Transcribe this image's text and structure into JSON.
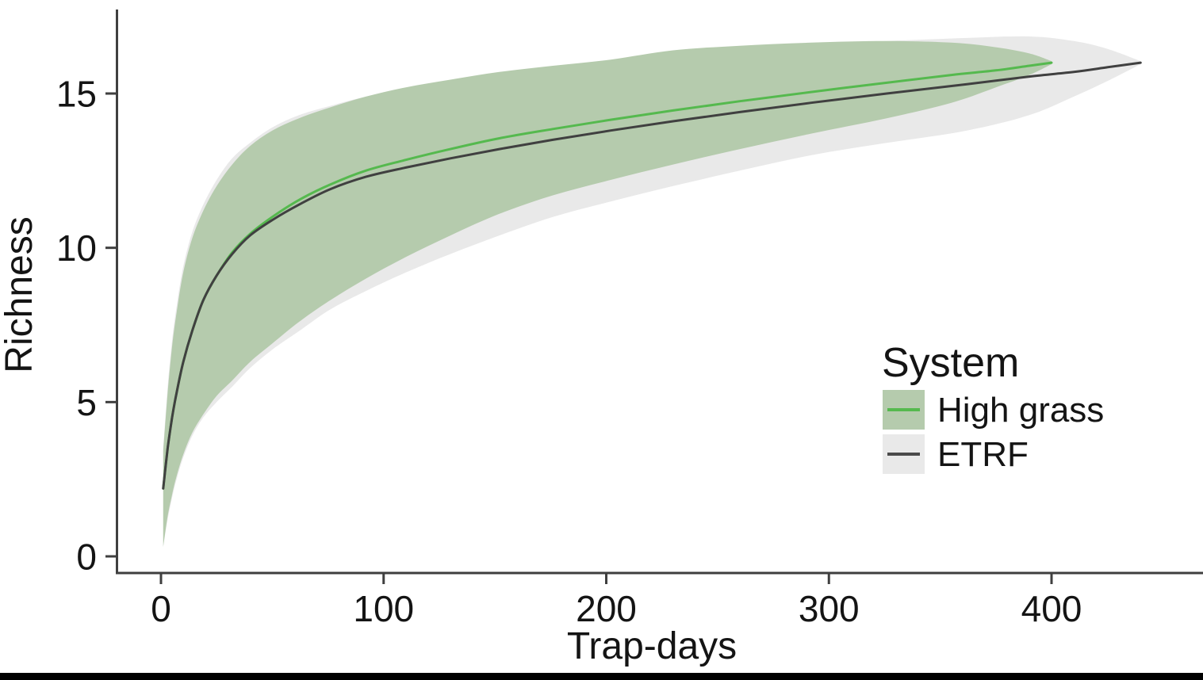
{
  "figure": {
    "background": "#ffffff",
    "bottom_bar_color": "#000000",
    "axis_line_color": "#3f3f3f",
    "tick_label_color": "#141414"
  },
  "chart_data": {
    "type": "line",
    "title": "",
    "xlabel": "Trap-days",
    "ylabel": "Richness",
    "xlim": [
      0,
      460
    ],
    "ylim": [
      0,
      17.5
    ],
    "x_ticks": [
      0,
      100,
      200,
      300,
      400
    ],
    "y_ticks": [
      0,
      5,
      10,
      15
    ],
    "grid": "off",
    "legend": {
      "title": "System",
      "position": "right-middle",
      "entries": [
        {
          "label": "High grass",
          "line_color": "#55b94e",
          "ribbon_color": "#b5cbad"
        },
        {
          "label": "ETRF",
          "line_color": "#4a4a4a",
          "ribbon_color": "#e9e9e9"
        }
      ]
    },
    "series": [
      {
        "key": "etrf",
        "name": "ETRF",
        "style": "line-with-ribbon",
        "line_color": "#404040",
        "ribbon_color": "#e9e9e9",
        "x": [
          1,
          3,
          5,
          7,
          10,
          14,
          19,
          25,
          32,
          40,
          50,
          62,
          76,
          92,
          110,
          130,
          152,
          176,
          202,
          230,
          260,
          292,
          326,
          362,
          390,
          410,
          425,
          440
        ],
        "y": [
          2.2,
          3.5,
          4.5,
          5.3,
          6.3,
          7.3,
          8.3,
          9.1,
          9.8,
          10.4,
          10.9,
          11.4,
          11.9,
          12.3,
          12.6,
          12.9,
          13.2,
          13.5,
          13.8,
          14.1,
          14.4,
          14.7,
          15.0,
          15.3,
          15.55,
          15.7,
          15.85,
          16.0
        ],
        "upper": [
          3.5,
          5.5,
          7.0,
          8.1,
          9.4,
          10.5,
          11.4,
          12.2,
          12.9,
          13.4,
          13.9,
          14.3,
          14.6,
          14.9,
          15.15,
          15.4,
          15.6,
          15.8,
          15.95,
          16.2,
          16.45,
          16.6,
          16.7,
          16.8,
          16.85,
          16.7,
          16.45,
          16.05
        ],
        "lower": [
          0.3,
          1.2,
          1.9,
          2.5,
          3.2,
          3.9,
          4.5,
          5.0,
          5.5,
          6.1,
          6.7,
          7.3,
          8.0,
          8.6,
          9.2,
          9.8,
          10.4,
          11.0,
          11.5,
          12.0,
          12.5,
          13.0,
          13.4,
          13.8,
          14.3,
          14.9,
          15.4,
          15.95
        ]
      },
      {
        "key": "high_grass",
        "name": "High grass",
        "style": "line-with-ribbon",
        "line_color": "#55b94e",
        "ribbon_color": "#b5cbad",
        "x": [
          1,
          3,
          5,
          7,
          10,
          14,
          19,
          25,
          32,
          40,
          50,
          62,
          76,
          92,
          110,
          130,
          152,
          176,
          202,
          230,
          260,
          292,
          326,
          355,
          375,
          390,
          400
        ],
        "y": [
          2.2,
          3.5,
          4.5,
          5.3,
          6.3,
          7.3,
          8.3,
          9.1,
          9.85,
          10.45,
          11.0,
          11.55,
          12.05,
          12.5,
          12.85,
          13.2,
          13.55,
          13.85,
          14.15,
          14.45,
          14.75,
          15.05,
          15.35,
          15.6,
          15.75,
          15.9,
          16.0
        ],
        "upper": [
          3.4,
          5.3,
          6.8,
          7.9,
          9.2,
          10.3,
          11.2,
          12.0,
          12.7,
          13.3,
          13.8,
          14.2,
          14.55,
          14.9,
          15.2,
          15.45,
          15.7,
          15.9,
          16.1,
          16.4,
          16.55,
          16.65,
          16.7,
          16.65,
          16.5,
          16.3,
          16.05
        ],
        "lower": [
          0.3,
          1.3,
          2.0,
          2.6,
          3.3,
          4.0,
          4.6,
          5.2,
          5.7,
          6.3,
          6.9,
          7.6,
          8.3,
          9.0,
          9.7,
          10.4,
          11.1,
          11.7,
          12.2,
          12.7,
          13.2,
          13.7,
          14.2,
          14.7,
          15.2,
          15.6,
          15.95
        ]
      }
    ]
  }
}
